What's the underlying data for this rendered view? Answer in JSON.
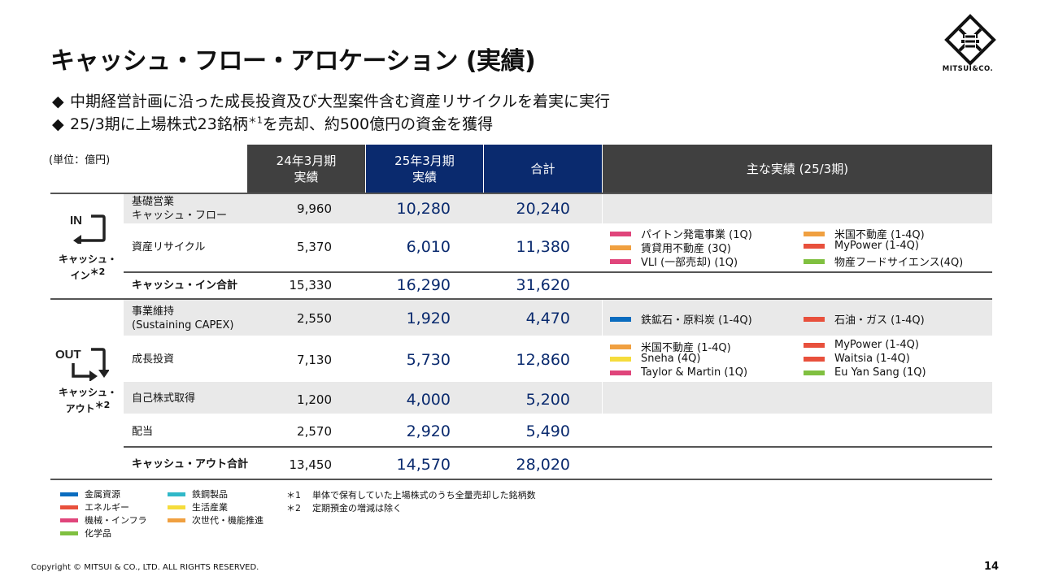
{
  "title": "キャッシュ・フロー・アロケーション (実績)",
  "bullets": [
    "中期経営計画に沿った成長投資及び大型案件含む資産リサイクルを着実に実行",
    "25/3期に上場株式23銘柄",
    "を売却、約500億円の資金を獲得"
  ],
  "bullet_marker": "◆",
  "bullet_sup": "＊1",
  "logo_text": "MITSUI&CO.",
  "unit": "(単位：億円)",
  "headers": {
    "fy24": [
      "24年3月期",
      "実績"
    ],
    "fy25": [
      "25年3月期",
      "実績"
    ],
    "total": "合計",
    "main": "主な実績 (25/3期)"
  },
  "cash_in": {
    "icon_text": "IN",
    "label": "キャッシュ・",
    "label2": "イン",
    "sup": "＊2",
    "rows": [
      {
        "label": [
          "基礎営業",
          "キャッシュ・フロー"
        ],
        "fy24": "9,960",
        "fy25": "10,280",
        "total": "20,240"
      },
      {
        "label": [
          "資産リサイクル"
        ],
        "fy24": "5,370",
        "fy25": "6,010",
        "total": "11,380"
      },
      {
        "label": [
          "キャッシュ・イン合計"
        ],
        "fy24": "15,330",
        "fy25": "16,290",
        "total": "31,620"
      }
    ]
  },
  "cash_out": {
    "icon_text": "OUT",
    "label": "キャッシュ・",
    "label2": "アウト",
    "sup": "＊2",
    "rows": [
      {
        "label": [
          "事業維持",
          "(Sustaining CAPEX)"
        ],
        "fy24": "2,550",
        "fy25": "1,920",
        "total": "4,470"
      },
      {
        "label": [
          "成長投資"
        ],
        "fy24": "7,130",
        "fy25": "5,730",
        "total": "12,860"
      },
      {
        "label": [
          "自己株式取得"
        ],
        "fy24": "1,200",
        "fy25": "4,000",
        "total": "5,200"
      },
      {
        "label": [
          "配当"
        ],
        "fy24": "2,570",
        "fy25": "2,920",
        "total": "5,490"
      },
      {
        "label": [
          "キャッシュ・アウト合計"
        ],
        "fy24": "13,450",
        "fy25": "14,570",
        "total": "28,020"
      }
    ]
  },
  "achievements": {
    "recycle": [
      {
        "text": "パイトン発電事業 (1Q)",
        "color": "#e0457b"
      },
      {
        "text": "米国不動産 (1-4Q)",
        "color": "#f0a040"
      },
      {
        "text": "賃貸用不動産 (3Q)",
        "color": "#f0a040"
      },
      {
        "text": "MyPower (1-4Q)",
        "color": "#e8503c"
      },
      {
        "text": "VLI (一部売却) (1Q)",
        "color": "#e0457b"
      },
      {
        "text": "物産フードサイエンス(4Q)",
        "color": "#80c040"
      }
    ],
    "capex": [
      {
        "text": "鉄鉱石・原料炭 (1-4Q)",
        "color": "#0a6cbf"
      },
      {
        "text": "石油・ガス (1-4Q)",
        "color": "#e8503c"
      }
    ],
    "growth": [
      {
        "text": "米国不動産 (1-4Q)",
        "color": "#f0a040"
      },
      {
        "text": "MyPower (1-4Q)",
        "color": "#e8503c"
      },
      {
        "text": "Sneha (4Q)",
        "color": "#f5dc3c"
      },
      {
        "text": "Waitsia (1-4Q)",
        "color": "#e8503c"
      },
      {
        "text": "Taylor & Martin (1Q)",
        "color": "#e0457b"
      },
      {
        "text": "Eu Yan Sang (1Q)",
        "color": "#80c040"
      }
    ]
  },
  "segment_legend": [
    {
      "text": "金属資源",
      "color": "#0a6cbf"
    },
    {
      "text": "鉄鋼製品",
      "color": "#30b8c8"
    },
    {
      "text": "エネルギー",
      "color": "#e8503c"
    },
    {
      "text": "生活産業",
      "color": "#f5dc3c"
    },
    {
      "text": "機械・インフラ",
      "color": "#e0457b"
    },
    {
      "text": "次世代・機能推進",
      "color": "#f0a040"
    },
    {
      "text": "化学品",
      "color": "#80c040"
    }
  ],
  "notes": [
    {
      "mark": "＊1",
      "text": "単体で保有していた上場株式のうち全量売却した銘柄数"
    },
    {
      "mark": "＊2",
      "text": "定期預金の増減は除く"
    }
  ],
  "copyright": "Copyright © MITSUI & CO., LTD. ALL RIGHTS RESERVED.",
  "page_number": "14"
}
